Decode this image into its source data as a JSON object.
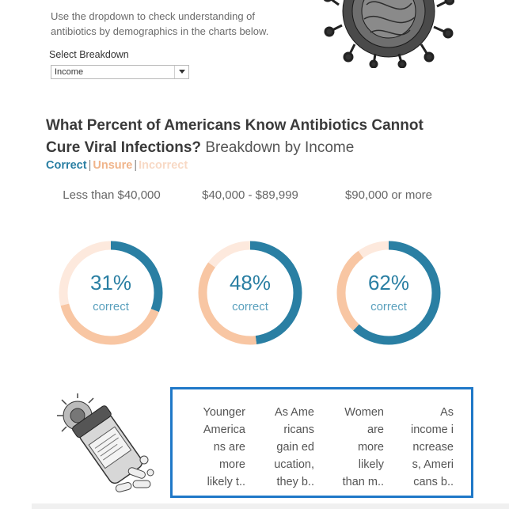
{
  "intro": {
    "line1": "Use the dropdown to check understanding of",
    "line2": "antibiotics by demographics in the charts below."
  },
  "breakdown": {
    "label": "Select Breakdown",
    "selected": "Income"
  },
  "title": {
    "bold_line1": "What Percent of Americans Know Antibiotics Cannot",
    "bold_line2": "Cure Viral Infections?",
    "light": "Breakdown by Income"
  },
  "legend": {
    "correct": "Correct",
    "unsure": "Unsure",
    "incorrect": "Incorrect",
    "separator": "|"
  },
  "colors": {
    "correct": "#2a7fa3",
    "unsure": "#f8c6a3",
    "incorrect": "#fde9dd",
    "box_border": "#1f78c8"
  },
  "chart_data": {
    "type": "pie",
    "categories": [
      "Less than $40,000",
      "$40,000 - $89,999",
      "$90,000 or more"
    ],
    "series": [
      {
        "name": "Correct",
        "values": [
          31,
          48,
          62
        ]
      },
      {
        "name": "Unsure",
        "values": [
          40,
          37,
          28
        ]
      },
      {
        "name": "Incorrect",
        "values": [
          29,
          15,
          10
        ]
      }
    ],
    "center_label": "correct"
  },
  "donuts": [
    {
      "pct": "31%",
      "label": "correct"
    },
    {
      "pct": "48%",
      "label": "correct"
    },
    {
      "pct": "62%",
      "label": "correct"
    }
  ],
  "facts": [
    {
      "lines": [
        "Younger",
        "America",
        "ns are",
        "more",
        "likely t.."
      ]
    },
    {
      "lines": [
        "As Ame",
        "ricans",
        "gain ed",
        "ucation,",
        "they b.."
      ]
    },
    {
      "lines": [
        "Women",
        "are",
        "more",
        "likely",
        "than m.."
      ]
    },
    {
      "lines": [
        "As",
        "income i",
        "ncrease",
        "s, Ameri",
        "cans b.."
      ]
    }
  ],
  "icons": {
    "virus": "virus-illustration",
    "pills": "pill-bottle-illustration",
    "dropdown": "chevron-down-icon"
  }
}
